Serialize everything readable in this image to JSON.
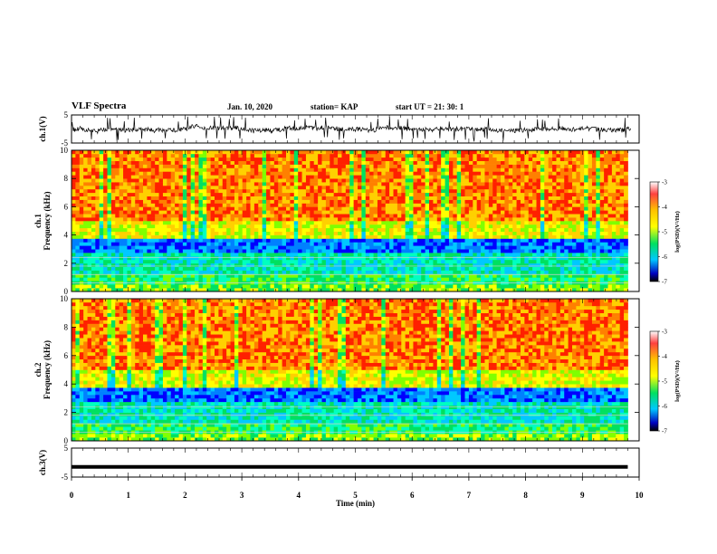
{
  "header": {
    "title": "VLF Spectra",
    "date": "Jan. 10, 2020",
    "station": "station= KAP",
    "start": "start  UT =   21: 30: 1"
  },
  "chart_data": [
    {
      "type": "line",
      "id": "ch1-waveform",
      "ylabel": "ch.1(V)",
      "ylim": [
        -5,
        5
      ],
      "ytick_labels": [
        "5",
        "-5"
      ],
      "xlim": [
        0,
        10
      ]
    },
    {
      "type": "heatmap",
      "id": "ch1-spectrogram",
      "ylabel": "ch.1\nFrequency (kHz)",
      "ylim": [
        0,
        10
      ],
      "ytick_labels": [
        "0",
        "2",
        "4",
        "6",
        "8",
        "10"
      ],
      "x_extent_min": [
        0,
        9.8
      ],
      "colorbar": {
        "label": "log(PSD)(V²/Hz)",
        "range": [
          -7,
          -3
        ],
        "tick_labels": [
          "-3",
          "-4",
          "-5",
          "-6",
          "-7"
        ]
      }
    },
    {
      "type": "heatmap",
      "id": "ch2-spectrogram",
      "ylabel": "ch.2\nFrequency (kHz)",
      "ylim": [
        0,
        10
      ],
      "ytick_labels": [
        "0",
        "2",
        "4",
        "6",
        "8",
        "10"
      ],
      "x_extent_min": [
        0,
        9.8
      ],
      "colorbar": {
        "label": "log(PSD)(V²/Hz)",
        "range": [
          -7,
          -3
        ],
        "tick_labels": [
          "-3",
          "-4",
          "-5",
          "-6",
          "-7"
        ]
      }
    },
    {
      "type": "line",
      "id": "ch3-waveform",
      "ylabel": "ch.3(V)",
      "ylim": [
        -5,
        5
      ],
      "ytick_labels": [
        "5",
        "-5"
      ],
      "x_extent_min": [
        0,
        9.8
      ],
      "approx_level_v": -1.5
    }
  ],
  "x_axis": {
    "label": "Time (min)",
    "range": [
      0,
      10
    ],
    "tick_labels": [
      "0",
      "1",
      "2",
      "3",
      "4",
      "5",
      "6",
      "7",
      "8",
      "9",
      "10"
    ]
  }
}
